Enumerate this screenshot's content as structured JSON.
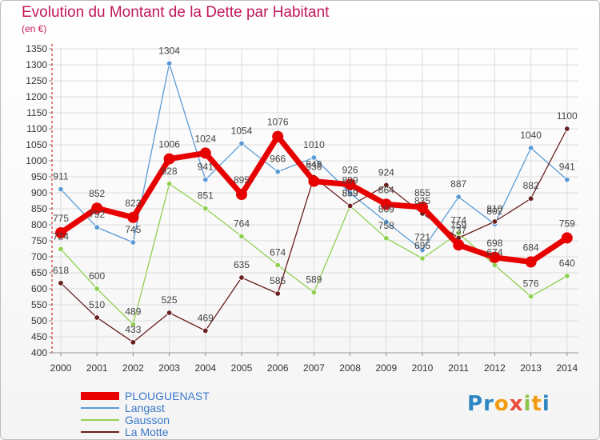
{
  "chart_data": {
    "type": "line",
    "title": "Evolution du Montant de la Dette par Habitant",
    "subtitle": "(en €)",
    "x": [
      "2000",
      "2001",
      "2002",
      "2003",
      "2004",
      "2005",
      "2006",
      "2007",
      "2008",
      "2009",
      "2010",
      "2011",
      "2012",
      "2013",
      "2014"
    ],
    "ylim": [
      400,
      1350
    ],
    "yticks": [
      400,
      450,
      500,
      550,
      600,
      650,
      700,
      750,
      800,
      850,
      900,
      950,
      1000,
      1050,
      1100,
      1150,
      1200,
      1250,
      1300,
      1350
    ],
    "grid": true,
    "legend_position": "bottom-left",
    "series": [
      {
        "name": "PLOUGUENAST",
        "color": "#e60000",
        "values": [
          775,
          852,
          823,
          1006,
          1024,
          895,
          1076,
          936,
          926,
          864,
          855,
          737,
          698,
          684,
          759
        ]
      },
      {
        "name": "Langast",
        "color": "#5b9bd5",
        "values": [
          911,
          792,
          745,
          1304,
          941,
          1054,
          966,
          1010,
          899,
          809,
          721,
          887,
          802,
          1040,
          941
        ]
      },
      {
        "name": "Gausson",
        "color": "#90d050",
        "values": [
          724,
          600,
          489,
          928,
          851,
          764,
          674,
          589,
          859,
          758,
          695,
          774,
          674,
          576,
          640
        ]
      },
      {
        "name": "La Motte",
        "color": "#6b2020",
        "values": [
          618,
          510,
          433,
          525,
          469,
          635,
          585,
          949,
          859,
          924,
          835,
          759,
          810,
          882,
          1100
        ]
      }
    ]
  },
  "logo": {
    "letters": [
      "P",
      "r",
      "o",
      "x",
      "i",
      "t",
      "i"
    ],
    "colors": [
      "#2e86c1",
      "#2e86c1",
      "#f39c12",
      "#e74c3c",
      "#8bc34a",
      "#f39c12",
      "#2e86c1"
    ]
  }
}
